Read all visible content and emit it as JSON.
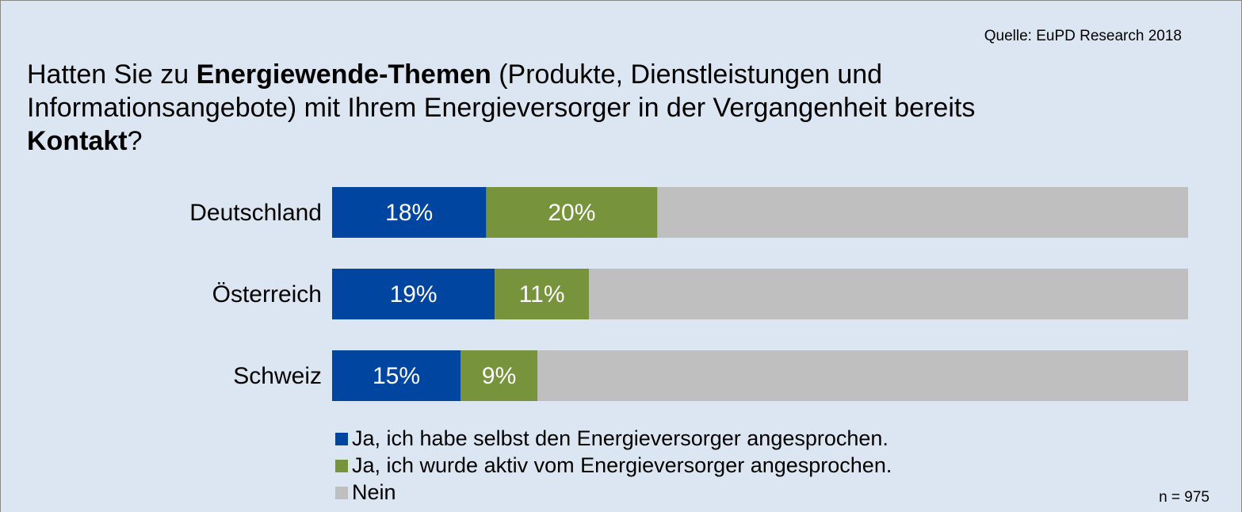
{
  "chart_data": {
    "type": "stacked-barh",
    "title": [
      {
        "text": "Hatten Sie zu ",
        "bold": false
      },
      {
        "text": "Energiewende-Themen",
        "bold": true
      },
      {
        "text": " (Produkte, Dienstleistungen und Informationsangebote) mit Ihrem Energieversorger in der Vergangenheit bereits ",
        "bold": false
      },
      {
        "text": "Kontakt",
        "bold": true
      },
      {
        "text": "?",
        "bold": false
      }
    ],
    "source": "Quelle: EuPD Research 2018",
    "note": "n = 975",
    "categories": [
      "Deutschland",
      "Österreich",
      "Schweiz"
    ],
    "xlim": [
      0,
      100
    ],
    "series": [
      {
        "name": "Ja, ich habe selbst den Energieversorger angesprochen.",
        "color": "#0046a0",
        "values": [
          18,
          19,
          15
        ],
        "value_labels": [
          "18%",
          "19%",
          "15%"
        ]
      },
      {
        "name": "Ja, ich wurde aktiv vom Energieversorger angesprochen.",
        "color": "#77933c",
        "values": [
          20,
          11,
          9
        ],
        "value_labels": [
          "20%",
          "11%",
          "9%"
        ]
      },
      {
        "name": "Nein",
        "color": "#bfbfbf",
        "values": [
          62,
          70,
          76
        ]
      }
    ]
  }
}
